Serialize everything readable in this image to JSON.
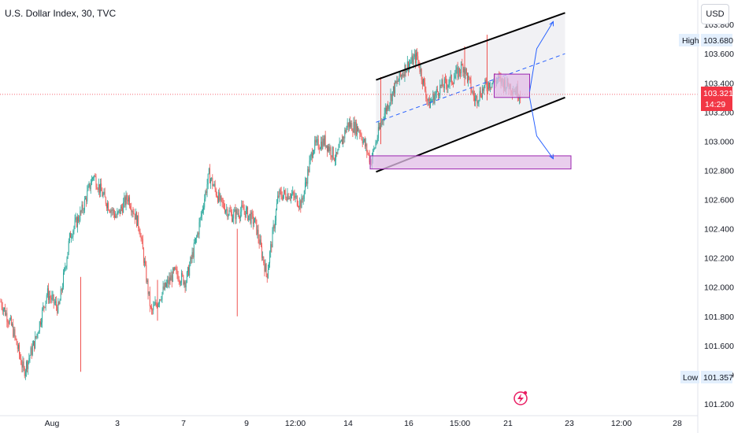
{
  "header": {
    "title": "U.S. Dollar Index, 30, TVC",
    "currency_button": "USD"
  },
  "price_tags": {
    "high_label": "High",
    "high_value": "103.680",
    "low_label": "Low",
    "low_value": "101.357",
    "current_value": "103.321",
    "countdown": "14:29"
  },
  "colors": {
    "up": "#26a69a",
    "down": "#ef5350",
    "channel": "#000000",
    "box_fill": "#e1bee7",
    "box_stroke": "#9c27b0",
    "projection": "#2962ff",
    "current_price": "#f23645"
  },
  "chart_data": {
    "type": "candlestick",
    "title": "U.S. Dollar Index, 30, TVC",
    "y_ticks": [
      "101.200",
      "101.400",
      "101.600",
      "101.800",
      "102.000",
      "102.200",
      "102.400",
      "102.600",
      "102.800",
      "103.000",
      "103.200",
      "103.400",
      "103.600",
      "103.800"
    ],
    "x_ticks": [
      "Aug",
      "3",
      "7",
      "9",
      "12:00",
      "14",
      "16",
      "15:00",
      "21",
      "23",
      "12:00",
      "28"
    ],
    "ylim": [
      101.13,
      103.86
    ],
    "current_price": 103.321,
    "high": 103.68,
    "low": 101.357,
    "path": [
      [
        0,
        101.9
      ],
      [
        2,
        101.72
      ],
      [
        4,
        101.42
      ],
      [
        6,
        101.64
      ],
      [
        8,
        101.96
      ],
      [
        10,
        101.85
      ],
      [
        12,
        102.36
      ],
      [
        14,
        102.52
      ],
      [
        16,
        102.77
      ],
      [
        18,
        102.6
      ],
      [
        20,
        102.48
      ],
      [
        22,
        102.62
      ],
      [
        24,
        102.41
      ],
      [
        26,
        101.82
      ],
      [
        28,
        101.97
      ],
      [
        30,
        102.1
      ],
      [
        32,
        102.04
      ],
      [
        34,
        102.36
      ],
      [
        36,
        102.77
      ],
      [
        38,
        102.58
      ],
      [
        40,
        102.49
      ],
      [
        42,
        102.53
      ],
      [
        44,
        102.44
      ],
      [
        46,
        102.08
      ],
      [
        48,
        102.63
      ],
      [
        50,
        102.64
      ],
      [
        52,
        102.57
      ],
      [
        54,
        102.96
      ],
      [
        56,
        103.0
      ],
      [
        58,
        102.88
      ],
      [
        60,
        103.12
      ],
      [
        62,
        103.08
      ],
      [
        64,
        102.86
      ],
      [
        66,
        103.16
      ],
      [
        68,
        103.36
      ],
      [
        70,
        103.51
      ],
      [
        72,
        103.58
      ],
      [
        74,
        103.25
      ],
      [
        76,
        103.37
      ],
      [
        78,
        103.42
      ],
      [
        80,
        103.52
      ],
      [
        82,
        103.28
      ],
      [
        84,
        103.39
      ],
      [
        86,
        103.42
      ],
      [
        88,
        103.38
      ],
      [
        90,
        103.32
      ]
    ],
    "annotations": {
      "channel_upper": [
        [
          63,
          103.42
        ],
        [
          95,
          103.88
        ]
      ],
      "channel_lower": [
        [
          63,
          102.79
        ],
        [
          95,
          103.3
        ]
      ],
      "midline": [
        [
          63,
          103.13
        ],
        [
          95,
          103.6
        ]
      ],
      "resistance_box": [
        [
          83,
          103.3
        ],
        [
          89,
          103.46
        ]
      ],
      "support_box": [
        [
          62,
          102.81
        ],
        [
          96,
          102.9
        ]
      ],
      "projection_up": [
        [
          89,
          103.34
        ],
        [
          93,
          103.82
        ]
      ],
      "projection_down": [
        [
          89,
          103.3
        ],
        [
          93,
          102.88
        ]
      ]
    }
  }
}
